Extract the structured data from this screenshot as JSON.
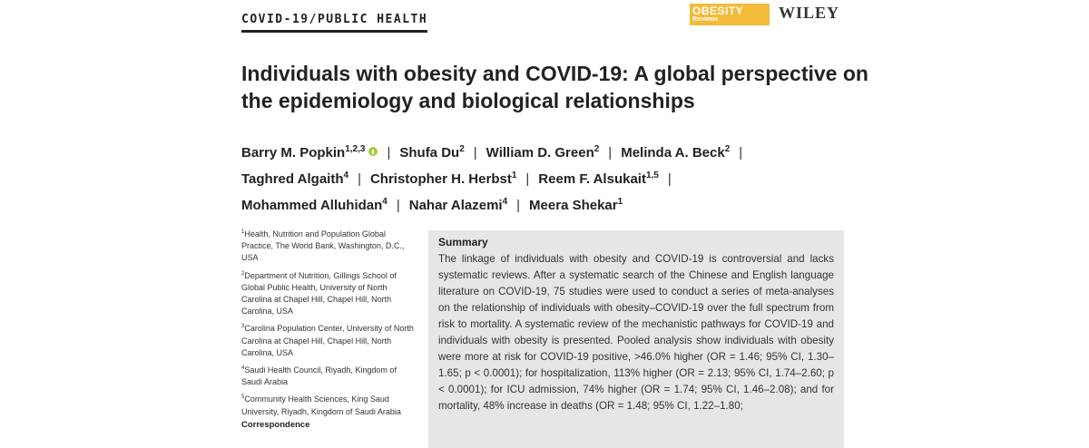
{
  "header": {
    "section_label": "COVID-19/PUBLIC HEALTH",
    "journal_logo_main": "OBESITY",
    "journal_logo_sub": "Reviews",
    "publisher": "WILEY"
  },
  "article": {
    "title": "Individuals with obesity and COVID-19: A global perspective on the epidemiology and biological relationships",
    "authors": [
      {
        "name": "Barry M. Popkin",
        "sup": "1,2,3",
        "orcid": true
      },
      {
        "name": "Shufa Du",
        "sup": "2"
      },
      {
        "name": "William D. Green",
        "sup": "2"
      },
      {
        "name": "Melinda A. Beck",
        "sup": "2"
      },
      {
        "name": "Taghred Algaith",
        "sup": "4"
      },
      {
        "name": "Christopher H. Herbst",
        "sup": "1"
      },
      {
        "name": "Reem F. Alsukait",
        "sup": "1,5"
      },
      {
        "name": "Mohammed Alluhidan",
        "sup": "4"
      },
      {
        "name": "Nahar Alazemi",
        "sup": "4"
      },
      {
        "name": "Meera Shekar",
        "sup": "1"
      }
    ],
    "separator": "|"
  },
  "affiliations": [
    {
      "num": "1",
      "text": "Health, Nutrition and Population Global Practice, The World Bank, Washington, D.C., USA"
    },
    {
      "num": "2",
      "text": "Department of Nutrition, Gillings School of Global Public Health, University of North Carolina at Chapel Hill, Chapel Hill, North Carolina, USA"
    },
    {
      "num": "3",
      "text": "Carolina Population Center, University of North Carolina at Chapel Hill, Chapel Hill, North Carolina, USA"
    },
    {
      "num": "4",
      "text": "Saudi Health Council, Riyadh, Kingdom of Saudi Arabia"
    },
    {
      "num": "5",
      "text": "Community Health Sciences, King Saud University, Riyadh, Kingdom of Saudi Arabia"
    }
  ],
  "correspondence_label": "Correspondence",
  "summary": {
    "heading": "Summary",
    "text": "The linkage of individuals with obesity and COVID-19 is controversial and lacks systematic reviews. After a systematic search of the Chinese and English language literature on COVID-19, 75 studies were used to conduct a series of meta-analyses on the relationship of individuals with obesity–COVID-19 over the full spectrum from risk to mortality. A systematic review of the mechanistic pathways for COVID-19 and individuals with obesity is presented. Pooled analysis show individuals with obesity were more at risk for COVID-19 positive, >46.0% higher (OR = 1.46; 95% CI, 1.30–1.65; p < 0.0001); for hospitalization, 113% higher (OR = 2.13; 95% CI, 1.74–2.60; p < 0.0001); for ICU admission, 74% higher (OR = 1.74; 95% CI, 1.46–2.08); and for mortality, 48% increase in deaths (OR = 1.48; 95% CI, 1.22–1.80;"
  }
}
